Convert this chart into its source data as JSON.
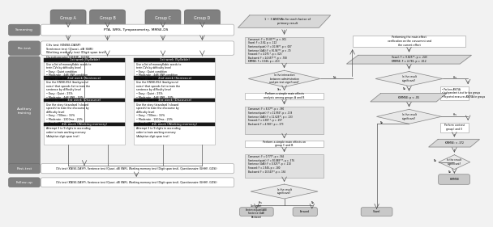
{
  "bg": "#ffffff",
  "lp": {
    "groups": [
      "Group A",
      "Group B",
      "Group C",
      "Group D"
    ],
    "screening_text": "PTA, WRS, Tympanometry, MMSE-DS",
    "pre_text": "CVs test (KNISE-DASP)\nSentence test (Quasi, dB SNR)\nWorking memory test (Digit span test)\nQuestionnaire (GHHF, GOSI)",
    "post_text": "CVs test (KNISE-DASP), Sentence test (Quasi, dB SNR), Working memory test (Digit span test), Questionnaire (GHHF, GOSI)",
    "follow_text": "CVs test (KNISE-DASP), Sentence test (Quasi, dB SNR), Working memory test (Digit span test), Questionnaire (GHHF, GOSI)",
    "w1": "1st week (Syllable)",
    "w1b": "Use a list of monosyllabic words to\ntrain CVs by difficulty level\n• Easy : Quiet condition\n• Moderate : 4dB SNR condition\n• Hard : 4dB SNR condition",
    "w2": "2nd week (Sentence)",
    "w2b": "Use the KNISE-K54 (background\nnoise) that speeds list to train the\nsentence by difficulty level\n• Easy : Quiet : 25%\n• Moderate : 4dB SNR : 50%\n• Hard : 4dB SNR : 75%",
    "w3": "3rd week (Discourse)",
    "w3b": "Use the story (standard / slowed\nspeech) to train the discourse by\ndifficulty level\n• Easy : 700ms : 15%\n• Moderate : 1300ms : 25%\n• Hard : 2500ms : 75%",
    "w4": "4th week (Working memory)",
    "w4b": "Attempt 3 to 9 digits in ascending\norder to train working memory\n(Adaptive digit span test)"
  },
  "rp": {
    "para1_text": "1 ~ 3 ANOVAs for each factor of\nprimary result",
    "stats1": "Consonant: F = 19.85***, p < .001\nVowel: F = 2.82, p = .122\nSentence(quiet): F = 10.98**, p < .007\nSentence (4dB): F = 50.94***, p < .70\nForward: F = 4.075 *, p = .023\nBackward: F = 24.657***, p = .708\nKMMSE: F = 0.946, p = .413",
    "diamond1": "Is the interaction\nbetween administration\nand pre-test significant?",
    "box1": "Perform a simple main effects\nanalysis among groups A and B",
    "stats2": "Consonant: F = 8.37**, p = .360\nSentence(quiet): F = 11.956*, p = .178\nSentence (4dB): F = 11.625**, p = .133\nForward: F = 4.687 *, p = .297\nBackward: F = 4.983*, p = .373",
    "box2": "Perform a simple main effects on\ngroup C and B",
    "stats3": "Consonant: F = 0.777*, p < .565\nSentence(quiet): F = 50.888***, p = .376\nSentence (4dB): F = 0.325**, p = .210\nForward: F = 2.546, p = .180\nBackward: F = 10.543**, p = .165",
    "diamond2": "Is the result\nsignificant?",
    "term1": "Consonant\nSentence(quiet/4dB)\nSentence (4dB)\nBackward",
    "term2": "Forward",
    "rbox1": "Performing the main effect\nverification on the concurrent and\nthe current effect",
    "rpara1": "Vowel: F = 9.825**, p = .243\nKMMSE: F = 4.785, p = .612",
    "rdiamond1": "Is the result\nsignificant?",
    "rbox2": "Perform ANOVA\nIndependent t-test for two groups\nRepeated measures ANOVA for groups",
    "rpara2": "KMMSE: p < .05",
    "rdiamond2": "Is the result\nsignificant?",
    "rbox3": "Perform contrast\ngroup I and II",
    "rpara3": "KMMSE: < .372",
    "rdiamond3": "Is the result\nsignificant?",
    "rterm1": "Vowel",
    "rterm2": "KMMSE"
  },
  "col": {
    "white": "#ffffff",
    "lgray": "#e8e8e8",
    "mgray": "#c8c8c8",
    "dgray": "#888888",
    "slabel": "#808080",
    "blk": "#1a1a1a",
    "arrow": "#555555"
  }
}
